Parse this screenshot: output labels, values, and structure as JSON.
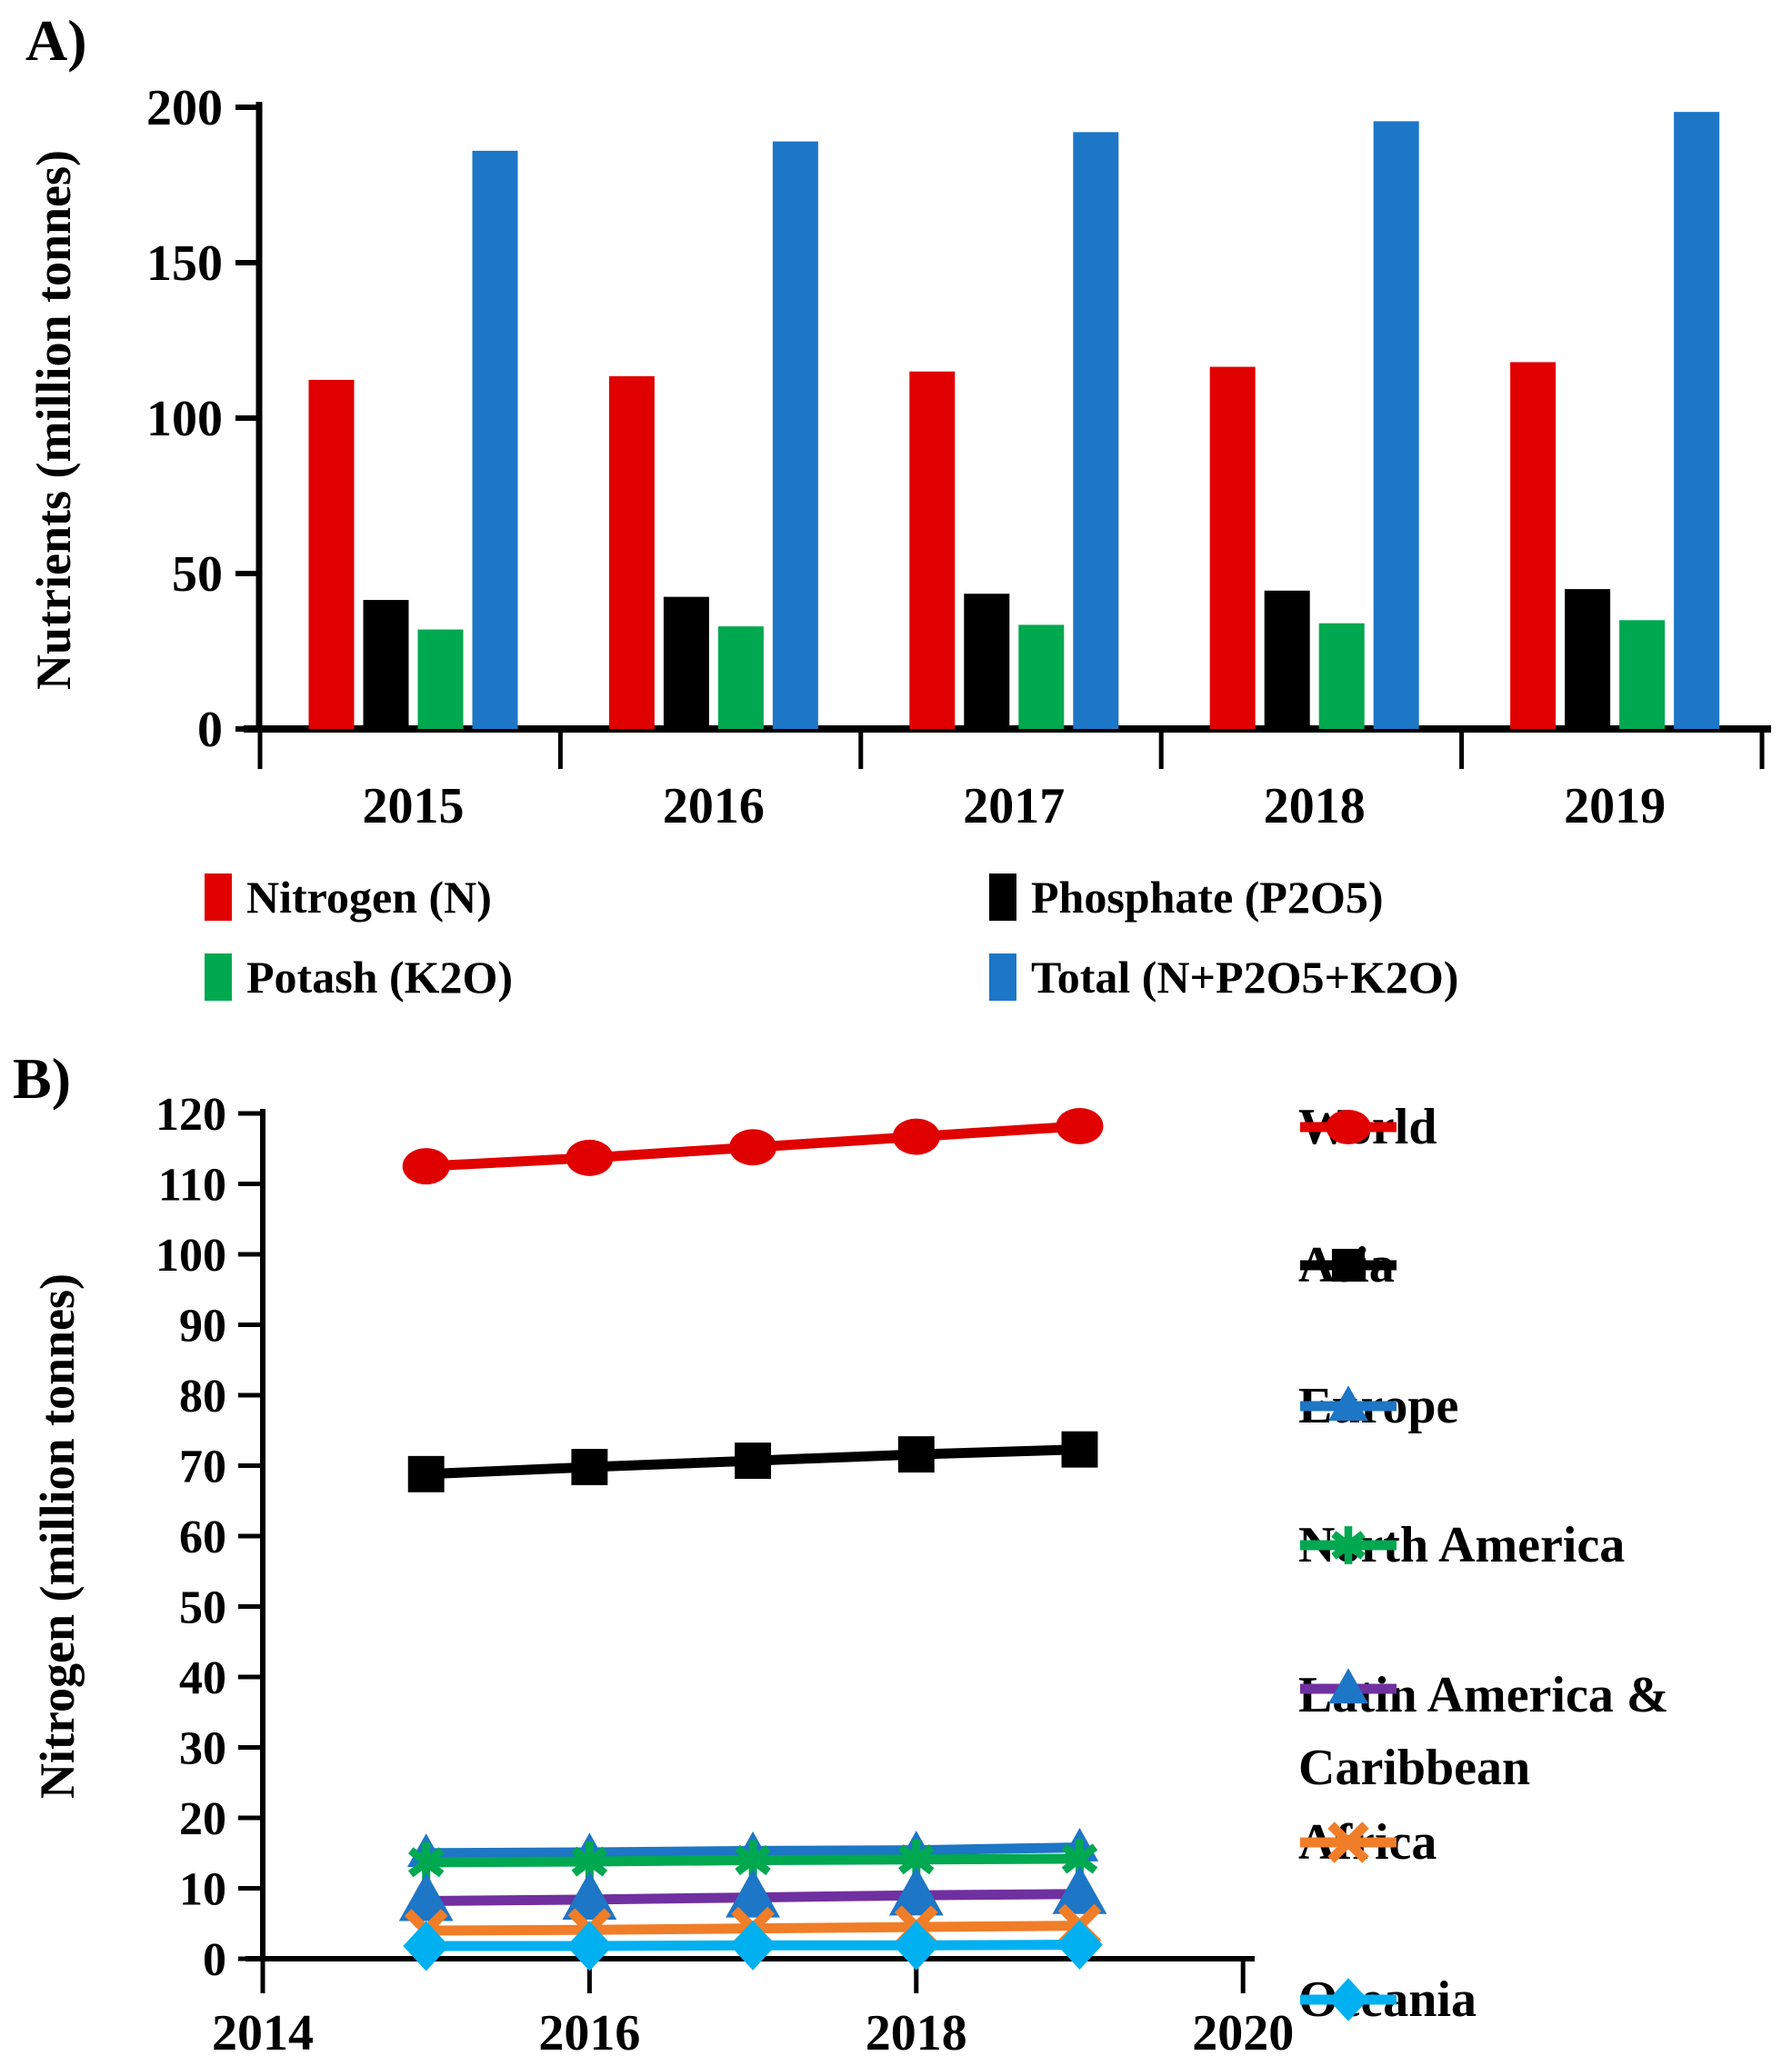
{
  "figure": {
    "panel_a_label": "A)",
    "panel_b_label": "B)"
  },
  "chart_data": [
    {
      "id": "panel-a",
      "type": "bar",
      "title": "",
      "xlabel": "",
      "ylabel": "Nutrients (million tonnes)",
      "ylim": [
        0,
        200
      ],
      "y_ticks": [
        0,
        50,
        100,
        150,
        200
      ],
      "grid": false,
      "legend_position": "below",
      "categories": [
        "2015",
        "2016",
        "2017",
        "2018",
        "2019"
      ],
      "series": [
        {
          "name": "Nitrogen (N)",
          "color": "#e00000",
          "values": [
            112.3,
            113.5,
            115.0,
            116.5,
            118.0
          ]
        },
        {
          "name": "Phosphate (P2O5)",
          "color": "#000000",
          "values": [
            41.5,
            42.5,
            43.5,
            44.5,
            45.0
          ]
        },
        {
          "name": "Potash (K2O)",
          "color": "#00a850",
          "values": [
            32.0,
            33.0,
            33.5,
            34.0,
            35.0
          ]
        },
        {
          "name": "Total (N+P2O5+K2O)",
          "color": "#1d76c6",
          "values": [
            186.0,
            189.0,
            192.0,
            195.5,
            198.5
          ]
        }
      ]
    },
    {
      "id": "panel-b",
      "type": "line",
      "title": "",
      "xlabel": "",
      "ylabel": "Nitrogen (million tonnes)",
      "ylim": [
        0,
        120
      ],
      "y_ticks": [
        0,
        10,
        20,
        30,
        40,
        50,
        60,
        70,
        80,
        90,
        100,
        110,
        120
      ],
      "xlim": [
        2014,
        2020
      ],
      "x_ticks": [
        2014,
        2016,
        2018,
        2020
      ],
      "x": [
        2015,
        2016,
        2017,
        2018,
        2019
      ],
      "grid": false,
      "legend_position": "right",
      "series": [
        {
          "name": "World",
          "color": "#e00000",
          "marker": "circle",
          "values": [
            112.5,
            113.7,
            115.2,
            116.7,
            118.2
          ]
        },
        {
          "name": "Asia",
          "color": "#000000",
          "marker": "square",
          "values": [
            68.8,
            69.8,
            70.7,
            71.6,
            72.3
          ]
        },
        {
          "name": "Europe",
          "color": "#1d76c6",
          "marker": "triangle",
          "values": [
            15.0,
            15.1,
            15.3,
            15.4,
            15.8
          ]
        },
        {
          "name": "North America",
          "color": "#00a850",
          "marker": "asterisk",
          "values": [
            13.7,
            13.8,
            14.0,
            14.1,
            14.2
          ]
        },
        {
          "name": "Latin America & Caribbean",
          "color": "#7030a0",
          "marker": "triangle",
          "marker_color": "#1d76c6",
          "values": [
            8.2,
            8.4,
            8.7,
            9.0,
            9.2
          ]
        },
        {
          "name": "Africa",
          "color": "#f07d28",
          "marker": "x",
          "values": [
            4.0,
            4.1,
            4.3,
            4.5,
            4.7
          ]
        },
        {
          "name": "Oceania",
          "color": "#00b0f0",
          "marker": "diamond",
          "values": [
            1.8,
            1.8,
            1.9,
            1.9,
            2.0
          ]
        }
      ]
    }
  ]
}
